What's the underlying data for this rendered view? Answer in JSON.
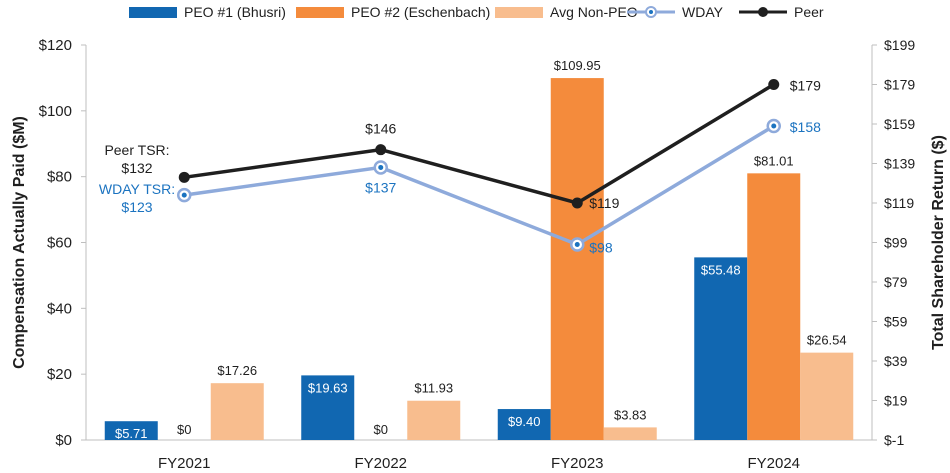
{
  "chart_data": {
    "type": "bar",
    "categories": [
      "FY2021",
      "FY2022",
      "FY2023",
      "FY2024"
    ],
    "ylabel": "Compensation Actually Paid ($M)",
    "y2label": "Total Shareholder Return ($)",
    "ylim": [
      0,
      120
    ],
    "y_ticks": [
      0,
      20,
      40,
      60,
      80,
      100,
      120
    ],
    "y_tick_labels": [
      "$0",
      "$20",
      "$40",
      "$60",
      "$80",
      "$100",
      "$120"
    ],
    "y2lim": [
      -1,
      199
    ],
    "y2_ticks": [
      -1,
      19,
      39,
      59,
      79,
      99,
      119,
      139,
      159,
      179,
      199
    ],
    "y2_tick_labels": [
      "$-1",
      "$19",
      "$39",
      "$59",
      "$79",
      "$99",
      "$119",
      "$139",
      "$159",
      "$179",
      "$199"
    ],
    "legend_position": "top",
    "series": [
      {
        "name": "PEO #1 (Bhusri)",
        "kind": "bar",
        "color": "#1167b1",
        "values": [
          5.71,
          19.63,
          9.4,
          55.48
        ],
        "labels": [
          "$5.71",
          "$19.63",
          "$9.40",
          "$55.48"
        ]
      },
      {
        "name": "PEO #2 (Eschenbach)",
        "kind": "bar",
        "color": "#f48b3c",
        "values": [
          0,
          0,
          109.95,
          81.01
        ],
        "labels": [
          "$0",
          "$0",
          "$109.95",
          "$81.01"
        ]
      },
      {
        "name": "Avg Non-PEO",
        "kind": "bar",
        "color": "#f8bd8e",
        "values": [
          17.26,
          11.93,
          3.83,
          26.54
        ],
        "labels": [
          "$17.26",
          "$11.93",
          "$3.83",
          "$26.54"
        ]
      },
      {
        "name": "WDAY",
        "kind": "line",
        "axis": "right",
        "color": "#8eaadb",
        "label_color": "#1b73c0",
        "values": [
          123,
          137,
          98,
          158
        ],
        "labels": [
          "$123",
          "$137",
          "$98",
          "$158"
        ]
      },
      {
        "name": "Peer",
        "kind": "line",
        "axis": "right",
        "color": "#1f1f1f",
        "label_color": "#1f1f1f",
        "values": [
          132,
          146,
          119,
          179
        ],
        "labels": [
          "$132",
          "$146",
          "$119",
          "$179"
        ]
      }
    ],
    "annotations": {
      "peer_tsr_prefix": "Peer TSR:",
      "wday_tsr_prefix": "WDAY TSR:"
    }
  }
}
